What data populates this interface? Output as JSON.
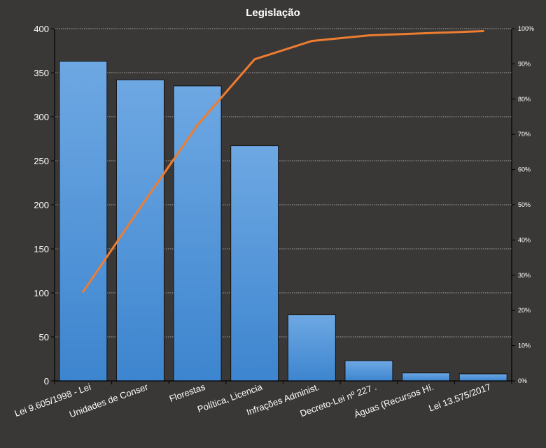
{
  "chart_data": {
    "type": "bar",
    "title": "Legislação",
    "categories": [
      "Lei 9.605/1998 - Lei",
      "Unidades de Conser",
      "Florestas",
      "Política, Licencia",
      "Infrações Administ.",
      "Decreto-Lei nº 227 .",
      "Águas (Recursos Hí.",
      "Lei 13.575/2017"
    ],
    "series": [
      {
        "type": "bar",
        "values": [
          363,
          342,
          335,
          267,
          75,
          23,
          9,
          8
        ],
        "color": "#4a8fd4"
      },
      {
        "type": "line",
        "axis": "right",
        "values": [
          25.3,
          49.2,
          72.6,
          91.3,
          96.5,
          98.1,
          98.7,
          99.3
        ],
        "color": "#ed7d31"
      }
    ],
    "ylim": [
      0,
      400
    ],
    "y_ticks": [
      "0",
      "50",
      "100",
      "150",
      "200",
      "250",
      "300",
      "350",
      "400"
    ],
    "y2lim": [
      0,
      100
    ],
    "y2_ticks": [
      "0%",
      "10%",
      "20%",
      "30%",
      "40%",
      "50%",
      "60%",
      "70%",
      "80%",
      "90%",
      "100%"
    ],
    "grid": true,
    "background": "#3a3836"
  }
}
